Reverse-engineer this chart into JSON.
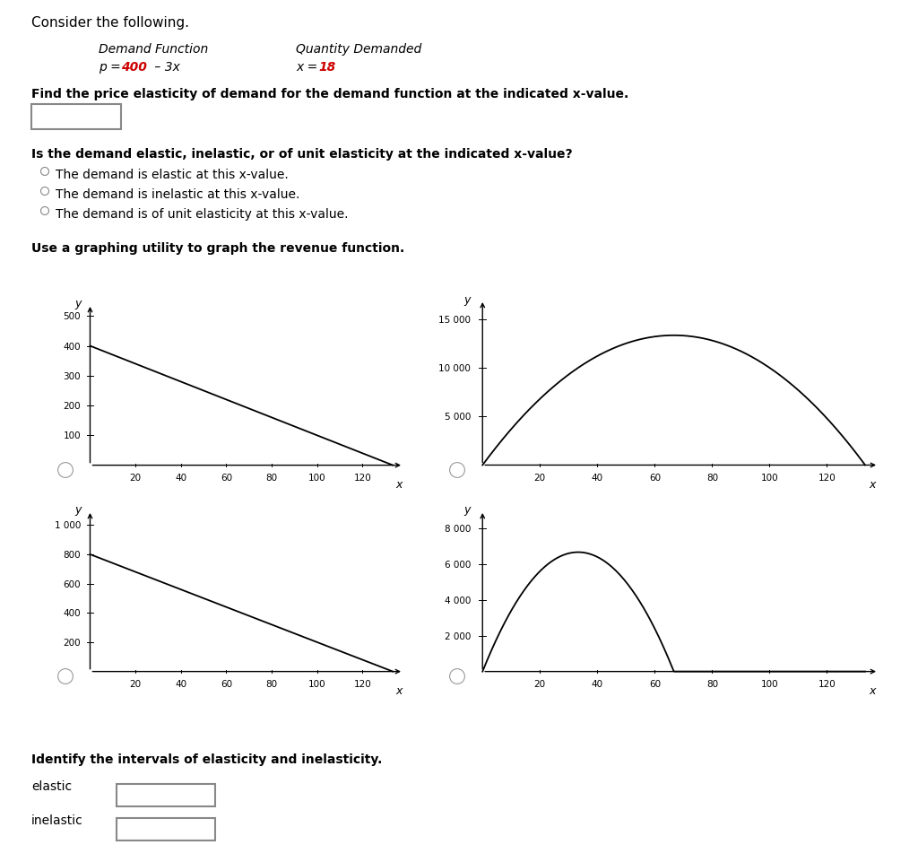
{
  "title_text": "Consider the following.",
  "demand_function_label": "Demand Function",
  "quantity_demanded_label": "Quantity Demanded",
  "find_text": "Find the price elasticity of demand for the demand function at the indicated x-value.",
  "is_demand_text": "Is the demand elastic, inelastic, or of unit elasticity at the indicated x-value?",
  "option1": "The demand is elastic at this x-value.",
  "option2": "The demand is inelastic at this x-value.",
  "option3": "The demand is of unit elasticity at this x-value.",
  "use_graphing_text": "Use a graphing utility to graph the revenue function.",
  "identify_text": "Identify the intervals of elasticity and inelasticity.",
  "elastic_label": "elastic",
  "inelastic_label": "inelastic",
  "background_color": "#ffffff",
  "text_color": "#000000",
  "red_color": "#cc0000",
  "graph1_xlim": [
    0,
    138
  ],
  "graph1_ylim": [
    0,
    540
  ],
  "graph1_xticks": [
    20,
    40,
    60,
    80,
    100,
    120
  ],
  "graph1_yticks": [
    100,
    200,
    300,
    400,
    500
  ],
  "graph2_xlim": [
    0,
    138
  ],
  "graph2_ylim": [
    0,
    17000
  ],
  "graph2_xticks": [
    20,
    40,
    60,
    80,
    100,
    120
  ],
  "graph2_yticks": [
    5000,
    10000,
    15000
  ],
  "graph3_xlim": [
    0,
    138
  ],
  "graph3_ylim": [
    0,
    1100
  ],
  "graph3_xticks": [
    20,
    40,
    60,
    80,
    100,
    120
  ],
  "graph3_yticks": [
    200,
    400,
    600,
    800,
    1000
  ],
  "graph4_xlim": [
    0,
    138
  ],
  "graph4_ylim": [
    0,
    9000
  ],
  "graph4_xticks": [
    20,
    40,
    60,
    80,
    100,
    120
  ],
  "graph4_yticks": [
    2000,
    4000,
    6000,
    8000
  ],
  "demand_a": 400,
  "demand_b": 3,
  "demand_a2": 800,
  "demand_b2": 6
}
